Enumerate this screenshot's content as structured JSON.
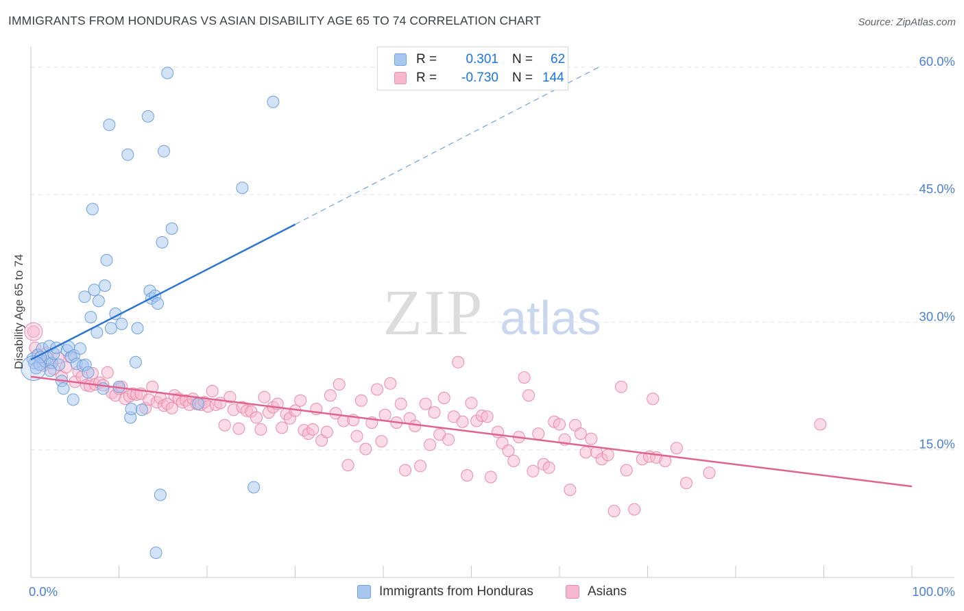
{
  "header": {
    "title": "IMMIGRANTS FROM HONDURAS VS ASIAN DISABILITY AGE 65 TO 74 CORRELATION CHART",
    "source": "Source: ZipAtlas.com"
  },
  "watermark": {
    "zip": "ZIP",
    "atlas": "atlas"
  },
  "stats": {
    "r_label": "R =",
    "n_label": "N =",
    "series1": {
      "r": "0.301",
      "n": "62"
    },
    "series2": {
      "r": "-0.730",
      "n": "144"
    }
  },
  "legend": {
    "series1_label": "Immigrants from Honduras",
    "series2_label": "Asians"
  },
  "colors": {
    "blue_fill": "#a8c7f0",
    "blue_stroke": "#6fa0dd",
    "blue_line": "#2e75d1",
    "pink_fill": "#f7b8cd",
    "pink_stroke": "#e98bab",
    "pink_line": "#e0628f",
    "tick_text": "#4a7fd4"
  },
  "chart_data": {
    "type": "scatter",
    "title": "IMMIGRANTS FROM HONDURAS VS ASIAN DISABILITY AGE 65 TO 74 CORRELATION CHART",
    "xlabel": "",
    "ylabel": "Disability Age 65 to 74",
    "xlim": [
      0,
      100
    ],
    "ylim": [
      0,
      62
    ],
    "x_tick_labels": [
      "0.0%",
      "100.0%"
    ],
    "y_ticks": [
      15,
      30,
      45,
      60
    ],
    "y_tick_labels": [
      "15.0%",
      "30.0%",
      "45.0%",
      "60.0%"
    ],
    "series": [
      {
        "name": "Immigrants from Honduras",
        "r": 0.301,
        "n": 62,
        "trend": {
          "x_start": 0,
          "y_start": 25.6,
          "x_solid_end": 30,
          "y_solid_end": 41.5,
          "x_dash_end": 64.5,
          "y_dash_end": 60.0
        },
        "points": [
          [
            0.2,
            25.7
          ],
          [
            0.4,
            25.2
          ],
          [
            0.6,
            24.6
          ],
          [
            0.8,
            26.2
          ],
          [
            1.0,
            25.0
          ],
          [
            1.3,
            26.9
          ],
          [
            1.6,
            25.4
          ],
          [
            1.9,
            25.8
          ],
          [
            2.1,
            27.2
          ],
          [
            2.4,
            25.2
          ],
          [
            2.6,
            26.3
          ],
          [
            2.9,
            27.0
          ],
          [
            3.2,
            25.0
          ],
          [
            3.5,
            23.1
          ],
          [
            3.7,
            22.2
          ],
          [
            4.1,
            26.7
          ],
          [
            4.3,
            27.1
          ],
          [
            4.6,
            25.9
          ],
          [
            4.9,
            26.1
          ],
          [
            5.2,
            25.1
          ],
          [
            5.6,
            26.9
          ],
          [
            5.9,
            24.9
          ],
          [
            6.2,
            25.0
          ],
          [
            6.5,
            24.1
          ],
          [
            4.8,
            20.9
          ],
          [
            6.1,
            33.0
          ],
          [
            6.8,
            30.6
          ],
          [
            7.0,
            43.3
          ],
          [
            7.2,
            33.8
          ],
          [
            7.5,
            28.8
          ],
          [
            7.7,
            32.5
          ],
          [
            8.2,
            22.2
          ],
          [
            8.4,
            34.3
          ],
          [
            8.6,
            37.3
          ],
          [
            8.9,
            53.2
          ],
          [
            9.1,
            29.3
          ],
          [
            9.6,
            31.0
          ],
          [
            10.0,
            22.4
          ],
          [
            10.3,
            29.8
          ],
          [
            11.0,
            49.7
          ],
          [
            11.3,
            18.8
          ],
          [
            11.4,
            19.8
          ],
          [
            11.9,
            25.3
          ],
          [
            12.1,
            29.3
          ],
          [
            12.6,
            19.7
          ],
          [
            13.3,
            54.2
          ],
          [
            13.5,
            33.7
          ],
          [
            13.7,
            32.8
          ],
          [
            14.1,
            33.1
          ],
          [
            14.4,
            32.2
          ],
          [
            14.2,
            2.9
          ],
          [
            14.7,
            9.7
          ],
          [
            14.9,
            39.4
          ],
          [
            15.1,
            50.1
          ],
          [
            15.5,
            59.3
          ],
          [
            16.0,
            41.0
          ],
          [
            19.0,
            20.4
          ],
          [
            24.0,
            45.8
          ],
          [
            25.3,
            10.6
          ],
          [
            27.5,
            55.9
          ],
          [
            2.2,
            24.3
          ],
          [
            1.1,
            25.9
          ]
        ]
      },
      {
        "name": "Asians",
        "r": -0.73,
        "n": 144,
        "trend": {
          "x_start": 0,
          "y_start": 23.6,
          "x_end": 100,
          "y_end": 10.7
        },
        "points": [
          [
            0.3,
            28.9
          ],
          [
            0.5,
            27.0
          ],
          [
            0.8,
            26.1
          ],
          [
            1.1,
            25.5
          ],
          [
            1.4,
            24.9
          ],
          [
            1.8,
            26.4
          ],
          [
            2.2,
            25.2
          ],
          [
            2.6,
            24.5
          ],
          [
            3.1,
            25.8
          ],
          [
            3.5,
            23.6
          ],
          [
            4.0,
            24.7
          ],
          [
            4.5,
            25.9
          ],
          [
            5.0,
            23.0
          ],
          [
            5.4,
            24.2
          ],
          [
            5.8,
            23.6
          ],
          [
            6.3,
            22.6
          ],
          [
            6.7,
            22.5
          ],
          [
            7.0,
            24.0
          ],
          [
            7.3,
            22.7
          ],
          [
            7.8,
            22.9
          ],
          [
            8.2,
            22.6
          ],
          [
            8.7,
            24.1
          ],
          [
            9.2,
            21.7
          ],
          [
            9.6,
            21.4
          ],
          [
            10.0,
            22.2
          ],
          [
            10.3,
            22.4
          ],
          [
            10.7,
            21.0
          ],
          [
            11.2,
            21.3
          ],
          [
            11.6,
            21.6
          ],
          [
            12.0,
            21.5
          ],
          [
            12.5,
            21.6
          ],
          [
            13.0,
            19.9
          ],
          [
            13.4,
            20.9
          ],
          [
            13.8,
            22.4
          ],
          [
            14.3,
            20.6
          ],
          [
            14.7,
            21.1
          ],
          [
            15.1,
            20.2
          ],
          [
            15.5,
            20.4
          ],
          [
            16.0,
            19.9
          ],
          [
            16.3,
            21.4
          ],
          [
            16.8,
            21.0
          ],
          [
            17.2,
            20.6
          ],
          [
            17.6,
            20.8
          ],
          [
            18.0,
            20.3
          ],
          [
            18.4,
            21.0
          ],
          [
            18.8,
            20.4
          ],
          [
            19.3,
            20.3
          ],
          [
            19.7,
            20.6
          ],
          [
            20.1,
            20.1
          ],
          [
            20.6,
            21.9
          ],
          [
            21.0,
            20.3
          ],
          [
            21.5,
            20.5
          ],
          [
            22.0,
            17.9
          ],
          [
            22.6,
            21.2
          ],
          [
            23.0,
            19.7
          ],
          [
            23.6,
            17.5
          ],
          [
            24.0,
            20.0
          ],
          [
            24.5,
            19.6
          ],
          [
            25.0,
            19.5
          ],
          [
            25.6,
            18.8
          ],
          [
            26.1,
            17.4
          ],
          [
            26.5,
            21.2
          ],
          [
            27.0,
            19.4
          ],
          [
            27.5,
            20.0
          ],
          [
            28.0,
            20.4
          ],
          [
            28.5,
            17.6
          ],
          [
            29.0,
            19.2
          ],
          [
            29.4,
            18.7
          ],
          [
            30.0,
            19.6
          ],
          [
            30.6,
            20.8
          ],
          [
            31.0,
            17.3
          ],
          [
            31.5,
            16.9
          ],
          [
            32.0,
            17.4
          ],
          [
            32.4,
            19.8
          ],
          [
            33.0,
            16.1
          ],
          [
            33.6,
            17.1
          ],
          [
            34.0,
            21.4
          ],
          [
            34.6,
            19.3
          ],
          [
            35.0,
            22.7
          ],
          [
            35.5,
            18.4
          ],
          [
            36.0,
            13.2
          ],
          [
            36.6,
            18.5
          ],
          [
            37.0,
            16.6
          ],
          [
            37.5,
            20.8
          ],
          [
            38.0,
            15.1
          ],
          [
            38.7,
            18.2
          ],
          [
            39.3,
            22.1
          ],
          [
            39.8,
            16.0
          ],
          [
            40.2,
            19.1
          ],
          [
            40.8,
            22.8
          ],
          [
            41.5,
            18.2
          ],
          [
            42.0,
            20.4
          ],
          [
            42.5,
            12.6
          ],
          [
            43.0,
            18.7
          ],
          [
            43.6,
            17.8
          ],
          [
            44.2,
            13.1
          ],
          [
            44.8,
            20.4
          ],
          [
            45.3,
            15.6
          ],
          [
            45.8,
            19.4
          ],
          [
            46.4,
            16.8
          ],
          [
            46.9,
            21.1
          ],
          [
            47.4,
            16.2
          ],
          [
            48.0,
            18.9
          ],
          [
            48.5,
            25.3
          ],
          [
            49.0,
            18.3
          ],
          [
            49.5,
            12.0
          ],
          [
            50.0,
            20.5
          ],
          [
            50.6,
            18.4
          ],
          [
            51.2,
            19.0
          ],
          [
            51.8,
            18.9
          ],
          [
            52.2,
            11.8
          ],
          [
            53.0,
            17.1
          ],
          [
            53.5,
            15.8
          ],
          [
            54.2,
            14.9
          ],
          [
            54.8,
            13.7
          ],
          [
            55.4,
            16.5
          ],
          [
            56.0,
            23.5
          ],
          [
            56.5,
            21.4
          ],
          [
            57.0,
            12.5
          ],
          [
            57.6,
            16.9
          ],
          [
            58.2,
            13.3
          ],
          [
            58.8,
            12.9
          ],
          [
            59.4,
            18.3
          ],
          [
            60.0,
            18.0
          ],
          [
            60.6,
            16.2
          ],
          [
            61.2,
            10.3
          ],
          [
            61.8,
            17.9
          ],
          [
            62.4,
            16.9
          ],
          [
            63.0,
            14.7
          ],
          [
            63.6,
            16.3
          ],
          [
            64.2,
            14.7
          ],
          [
            64.8,
            13.9
          ],
          [
            65.5,
            14.4
          ],
          [
            66.2,
            7.8
          ],
          [
            67.0,
            22.4
          ],
          [
            67.6,
            12.6
          ],
          [
            68.5,
            8.0
          ],
          [
            69.4,
            13.9
          ],
          [
            70.2,
            14.2
          ],
          [
            71.0,
            14.1
          ],
          [
            72.0,
            13.7
          ],
          [
            73.3,
            15.2
          ],
          [
            74.4,
            11.1
          ],
          [
            77.0,
            12.3
          ],
          [
            89.6,
            18.0
          ],
          [
            70.6,
            21.0
          ]
        ]
      }
    ]
  }
}
